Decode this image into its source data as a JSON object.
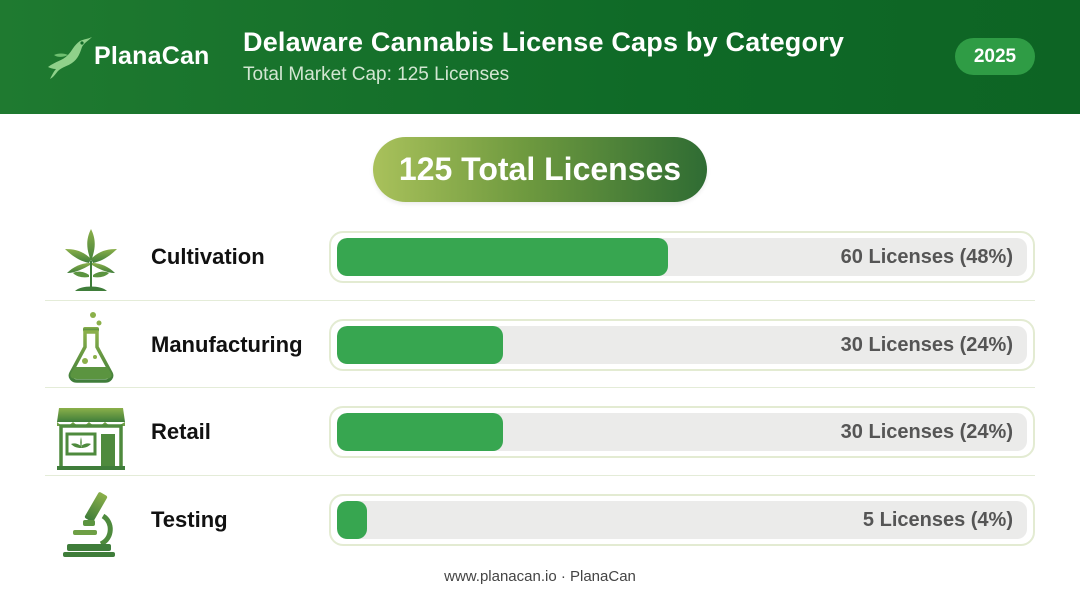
{
  "header": {
    "brand": "PlanaCan",
    "title": "Delaware Cannabis License Caps by Category",
    "subtitle": "Total Market Cap: 125 Licenses",
    "year": "2025"
  },
  "total_pill": "125 Total Licenses",
  "rows": [
    {
      "label": "Cultivation",
      "value_label": "60 Licenses (48%)",
      "icon": "cannabis-plant-icon"
    },
    {
      "label": "Manufacturing",
      "value_label": "30 Licenses (24%)",
      "icon": "lab-flask-icon"
    },
    {
      "label": "Retail",
      "value_label": "30 Licenses (24%)",
      "icon": "storefront-icon"
    },
    {
      "label": "Testing",
      "value_label": "5 Licenses (4%)",
      "icon": "microscope-icon"
    }
  ],
  "footer": "www.planacan.io · PlanaCan",
  "colors": {
    "header_green": "#0f6a27",
    "bar_fill": "#37a650",
    "bar_track": "#ebebea",
    "badge": "#2f9c45"
  },
  "chart_data": {
    "type": "bar",
    "orientation": "horizontal",
    "title": "Delaware Cannabis License Caps by Category",
    "subtitle": "Total Market Cap: 125 Licenses",
    "categories": [
      "Cultivation",
      "Manufacturing",
      "Retail",
      "Testing"
    ],
    "values": [
      60,
      30,
      30,
      5
    ],
    "percents": [
      48,
      24,
      24,
      4
    ],
    "total": 125,
    "xlim": [
      0,
      125
    ],
    "grid": false
  }
}
